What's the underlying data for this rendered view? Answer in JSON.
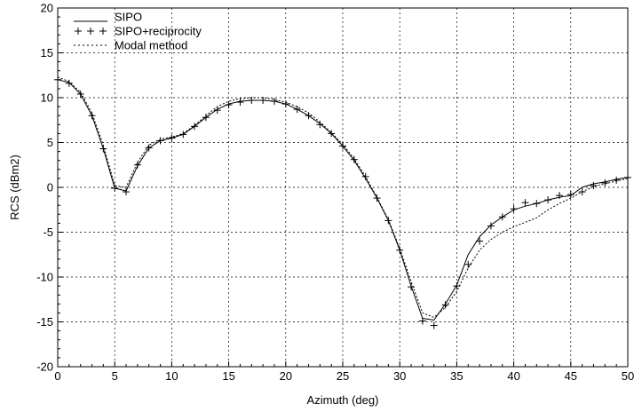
{
  "chart_data": {
    "type": "line",
    "xlabel": "Azimuth (deg)",
    "ylabel": "RCS (dBm2)",
    "xlim": [
      0,
      50
    ],
    "ylim": [
      -20,
      20
    ],
    "xticks": [
      0,
      5,
      10,
      15,
      20,
      25,
      30,
      35,
      40,
      45,
      50
    ],
    "yticks": [
      -20,
      -15,
      -10,
      -5,
      0,
      5,
      10,
      15,
      20
    ],
    "grid": true,
    "legend_position": "top-left",
    "series": [
      {
        "name": "SIPO",
        "style": "solid",
        "x": [
          0,
          1,
          2,
          3,
          4,
          5,
          6,
          7,
          8,
          9,
          10,
          11,
          12,
          13,
          14,
          15,
          16,
          17,
          18,
          19,
          20,
          21,
          22,
          23,
          24,
          25,
          26,
          27,
          28,
          29,
          30,
          31,
          32,
          33,
          34,
          35,
          36,
          37,
          38,
          39,
          40,
          41,
          42,
          43,
          44,
          45,
          46,
          47,
          48,
          49,
          50
        ],
        "y": [
          12.0,
          11.7,
          10.4,
          8.0,
          4.3,
          -0.1,
          -0.4,
          2.4,
          4.4,
          5.2,
          5.5,
          5.9,
          6.8,
          7.8,
          8.7,
          9.3,
          9.6,
          9.7,
          9.7,
          9.6,
          9.3,
          8.7,
          8.0,
          7.1,
          6.0,
          4.6,
          3.0,
          1.0,
          -1.2,
          -3.7,
          -7.0,
          -11.0,
          -14.6,
          -14.8,
          -13.0,
          -10.9,
          -7.5,
          -5.5,
          -4.2,
          -3.3,
          -2.5,
          -2.1,
          -1.8,
          -1.4,
          -1.1,
          -0.9,
          0.0,
          0.4,
          0.6,
          0.9,
          1.1
        ]
      },
      {
        "name": "SIPO+reciprocity",
        "style": "plus-markers",
        "x": [
          0,
          1,
          2,
          3,
          4,
          5,
          6,
          7,
          8,
          9,
          10,
          11,
          12,
          13,
          14,
          15,
          16,
          17,
          18,
          19,
          20,
          21,
          22,
          23,
          24,
          25,
          26,
          27,
          28,
          29,
          30,
          31,
          32,
          33,
          34,
          35,
          36,
          37,
          38,
          39,
          40,
          41,
          42,
          43,
          44,
          45,
          46,
          47,
          48,
          49,
          50
        ],
        "y": [
          12.0,
          11.6,
          10.4,
          8.0,
          4.3,
          -0.1,
          -0.5,
          2.5,
          4.4,
          5.2,
          5.5,
          5.9,
          6.8,
          7.8,
          8.6,
          9.2,
          9.5,
          9.7,
          9.7,
          9.6,
          9.3,
          8.7,
          8.0,
          7.0,
          6.0,
          4.6,
          3.1,
          1.2,
          -1.2,
          -3.7,
          -7.0,
          -11.1,
          -14.9,
          -15.4,
          -13.1,
          -11.0,
          -8.6,
          -6.0,
          -4.3,
          -3.3,
          -2.4,
          -1.7,
          -1.8,
          -1.4,
          -0.9,
          -0.8,
          -0.5,
          0.2,
          0.5,
          0.8,
          1.1
        ]
      },
      {
        "name": "Modal method",
        "style": "dotted",
        "x": [
          0,
          1,
          2,
          3,
          4,
          5,
          6,
          7,
          8,
          9,
          10,
          11,
          12,
          13,
          14,
          15,
          16,
          17,
          18,
          19,
          20,
          21,
          22,
          23,
          24,
          25,
          26,
          27,
          28,
          29,
          30,
          31,
          32,
          33,
          34,
          35,
          36,
          37,
          38,
          39,
          40,
          41,
          42,
          43,
          44,
          45,
          46,
          47,
          48,
          49,
          50
        ],
        "y": [
          12.3,
          11.8,
          10.6,
          8.3,
          4.7,
          0.2,
          0.0,
          2.8,
          4.7,
          5.4,
          5.6,
          6.0,
          6.9,
          8.0,
          9.0,
          9.6,
          9.9,
          10.0,
          10.0,
          9.8,
          9.5,
          9.0,
          8.3,
          7.3,
          6.1,
          4.8,
          3.2,
          1.2,
          -1.1,
          -3.6,
          -6.8,
          -10.5,
          -14.0,
          -14.5,
          -13.4,
          -11.6,
          -9.0,
          -7.0,
          -5.8,
          -5.0,
          -4.4,
          -3.9,
          -3.4,
          -2.5,
          -1.8,
          -1.2,
          -0.5,
          0.1,
          0.4,
          0.7,
          1.0
        ]
      }
    ]
  }
}
